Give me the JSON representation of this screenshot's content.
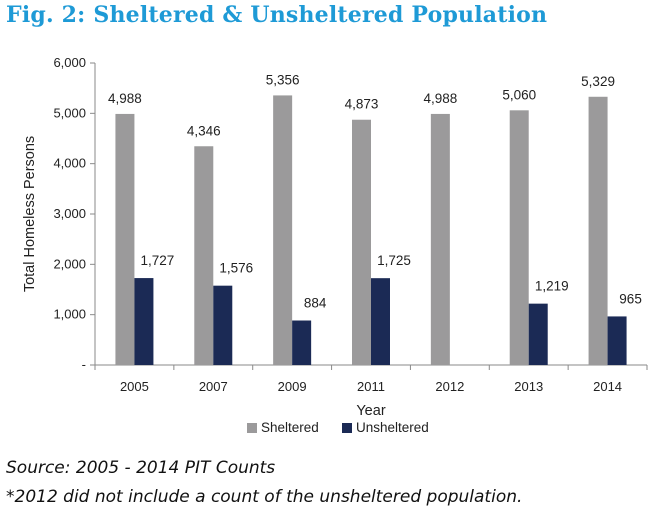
{
  "title": "Fig. 2: Sheltered & Unsheltered Population",
  "notes": {
    "source": "Source: 2005 - 2014 PIT Counts",
    "footnote": "*2012 did not include a count of the unsheltered population."
  },
  "colors": {
    "title": "#1e9ad6",
    "sheltered": "#9b9a9b",
    "unsheltered": "#1b2a55"
  },
  "chart_data": {
    "type": "bar",
    "title": "Fig. 2: Sheltered & Unsheltered Population",
    "xlabel": "Year",
    "ylabel": "Total Homeless Persons",
    "ylim": [
      0,
      6000
    ],
    "yticks": [
      "-",
      "1,000",
      "2,000",
      "3,000",
      "4,000",
      "5,000",
      "6,000"
    ],
    "grid": false,
    "legend_position": "bottom",
    "categories": [
      "2005",
      "2007",
      "2009",
      "2011",
      "2012",
      "2013",
      "2014"
    ],
    "series": [
      {
        "name": "Sheltered",
        "values": [
          4988,
          4346,
          5356,
          4873,
          4988,
          5060,
          5329
        ],
        "labels": [
          "4,988",
          "4,346",
          "5,356",
          "4,873",
          "4,988",
          "5,060",
          "5,329"
        ]
      },
      {
        "name": "Unsheltered",
        "values": [
          1727,
          1576,
          884,
          1725,
          null,
          1219,
          965
        ],
        "labels": [
          "1,727",
          "1,576",
          "884",
          "1,725",
          "",
          "1,219",
          "965"
        ]
      }
    ]
  }
}
